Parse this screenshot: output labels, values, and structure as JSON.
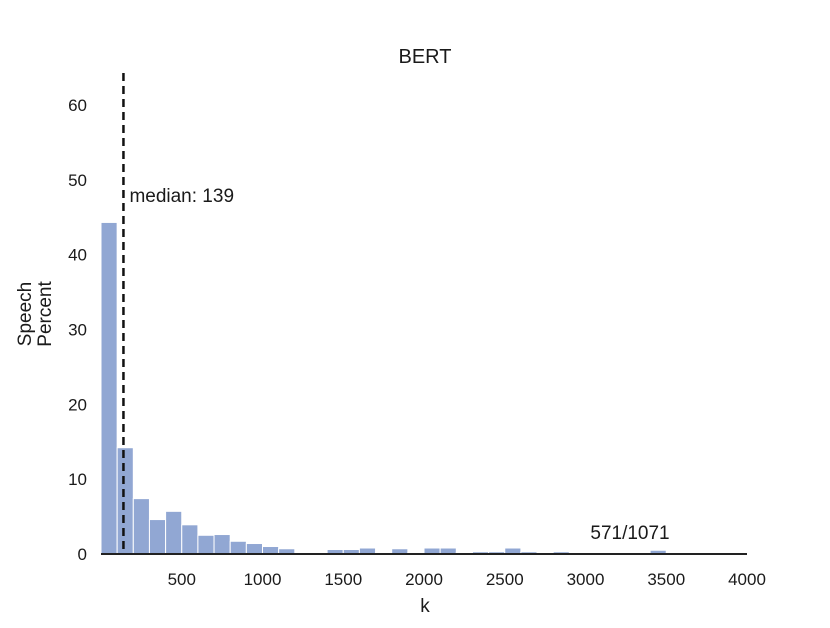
{
  "chart_data": {
    "type": "bar",
    "title": "BERT",
    "xlabel": "k",
    "ylabel_lines": [
      "Speech",
      "Percent"
    ],
    "xlim": [
      0,
      4000
    ],
    "ylim": [
      0,
      64
    ],
    "xticks": [
      500,
      1000,
      1500,
      2000,
      2500,
      3000,
      3500,
      4000
    ],
    "yticks": [
      0,
      10,
      20,
      30,
      40,
      50,
      60
    ],
    "bin_width": 100,
    "bins": [
      {
        "x0": 0,
        "x1": 100,
        "value": 44.3
      },
      {
        "x0": 100,
        "x1": 200,
        "value": 14.2
      },
      {
        "x0": 200,
        "x1": 300,
        "value": 7.4
      },
      {
        "x0": 300,
        "x1": 400,
        "value": 4.6
      },
      {
        "x0": 400,
        "x1": 500,
        "value": 5.7
      },
      {
        "x0": 500,
        "x1": 600,
        "value": 3.9
      },
      {
        "x0": 600,
        "x1": 700,
        "value": 2.5
      },
      {
        "x0": 700,
        "x1": 800,
        "value": 2.6
      },
      {
        "x0": 800,
        "x1": 900,
        "value": 1.7
      },
      {
        "x0": 900,
        "x1": 1000,
        "value": 1.4
      },
      {
        "x0": 1000,
        "x1": 1100,
        "value": 1.0
      },
      {
        "x0": 1100,
        "x1": 1200,
        "value": 0.7
      },
      {
        "x0": 1200,
        "x1": 1300,
        "value": 0.0
      },
      {
        "x0": 1300,
        "x1": 1400,
        "value": 0.2
      },
      {
        "x0": 1400,
        "x1": 1500,
        "value": 0.6
      },
      {
        "x0": 1500,
        "x1": 1600,
        "value": 0.6
      },
      {
        "x0": 1600,
        "x1": 1700,
        "value": 0.8
      },
      {
        "x0": 1700,
        "x1": 1800,
        "value": 0.2
      },
      {
        "x0": 1800,
        "x1": 1900,
        "value": 0.7
      },
      {
        "x0": 1900,
        "x1": 2000,
        "value": 0.2
      },
      {
        "x0": 2000,
        "x1": 2100,
        "value": 0.8
      },
      {
        "x0": 2100,
        "x1": 2200,
        "value": 0.8
      },
      {
        "x0": 2200,
        "x1": 2300,
        "value": 0.2
      },
      {
        "x0": 2300,
        "x1": 2400,
        "value": 0.3
      },
      {
        "x0": 2400,
        "x1": 2500,
        "value": 0.3
      },
      {
        "x0": 2500,
        "x1": 2600,
        "value": 0.8
      },
      {
        "x0": 2600,
        "x1": 2700,
        "value": 0.3
      },
      {
        "x0": 2700,
        "x1": 2800,
        "value": 0.2
      },
      {
        "x0": 2800,
        "x1": 2900,
        "value": 0.3
      },
      {
        "x0": 2900,
        "x1": 3000,
        "value": 0.1
      },
      {
        "x0": 3000,
        "x1": 3100,
        "value": 0.2
      },
      {
        "x0": 3100,
        "x1": 3200,
        "value": 0.1
      },
      {
        "x0": 3200,
        "x1": 3300,
        "value": 0.1
      },
      {
        "x0": 3300,
        "x1": 3400,
        "value": 0.1
      },
      {
        "x0": 3400,
        "x1": 3500,
        "value": 0.5
      },
      {
        "x0": 3500,
        "x1": 3600,
        "value": 0.1
      },
      {
        "x0": 3600,
        "x1": 3700,
        "value": 0.1
      },
      {
        "x0": 3700,
        "x1": 3800,
        "value": 0.1
      },
      {
        "x0": 3800,
        "x1": 3900,
        "value": 0.1
      },
      {
        "x0": 3900,
        "x1": 4000,
        "value": 0.1
      }
    ],
    "median": {
      "value": 139,
      "label": "median: 139"
    },
    "annotation": {
      "text": "571/1071"
    },
    "grid": false,
    "colors": {
      "bar_fill": "#91a7d3",
      "bar_edge": "#ffffff",
      "axis": "#222222",
      "median_line": "#111111"
    }
  }
}
